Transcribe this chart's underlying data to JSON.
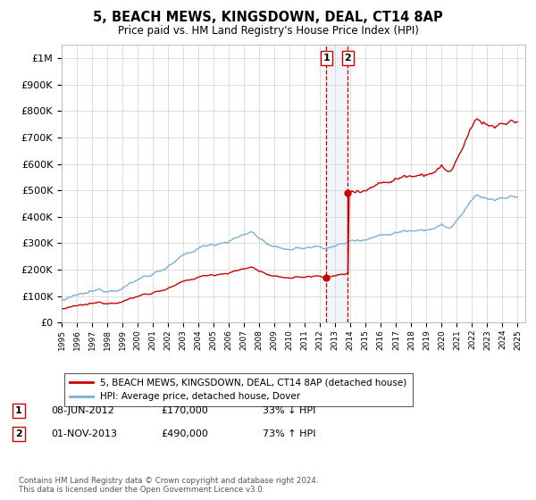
{
  "title": "5, BEACH MEWS, KINGSDOWN, DEAL, CT14 8AP",
  "subtitle": "Price paid vs. HM Land Registry's House Price Index (HPI)",
  "legend_line1": "5, BEACH MEWS, KINGSDOWN, DEAL, CT14 8AP (detached house)",
  "legend_line2": "HPI: Average price, detached house, Dover",
  "footnote": "Contains HM Land Registry data © Crown copyright and database right 2024.\nThis data is licensed under the Open Government Licence v3.0.",
  "sale1_date": "08-JUN-2012",
  "sale1_price": 170000,
  "sale1_pct": "33% ↓ HPI",
  "sale2_date": "01-NOV-2013",
  "sale2_price": 490000,
  "sale2_pct": "73% ↑ HPI",
  "hpi_color": "#7bafd4",
  "price_color": "#cc0000",
  "vline_color": "#cc0000",
  "vspan_color": "#c8d8e8",
  "ylim_max": 1050000,
  "ylabel_ticks": [
    0,
    100000,
    200000,
    300000,
    400000,
    500000,
    600000,
    700000,
    800000,
    900000,
    1000000
  ],
  "xlabel_years": [
    "1995",
    "1996",
    "1997",
    "1998",
    "1999",
    "2000",
    "2001",
    "2002",
    "2003",
    "2004",
    "2005",
    "2006",
    "2007",
    "2008",
    "2009",
    "2010",
    "2011",
    "2012",
    "2013",
    "2014",
    "2015",
    "2016",
    "2017",
    "2018",
    "2019",
    "2020",
    "2021",
    "2022",
    "2023",
    "2024",
    "2025"
  ]
}
